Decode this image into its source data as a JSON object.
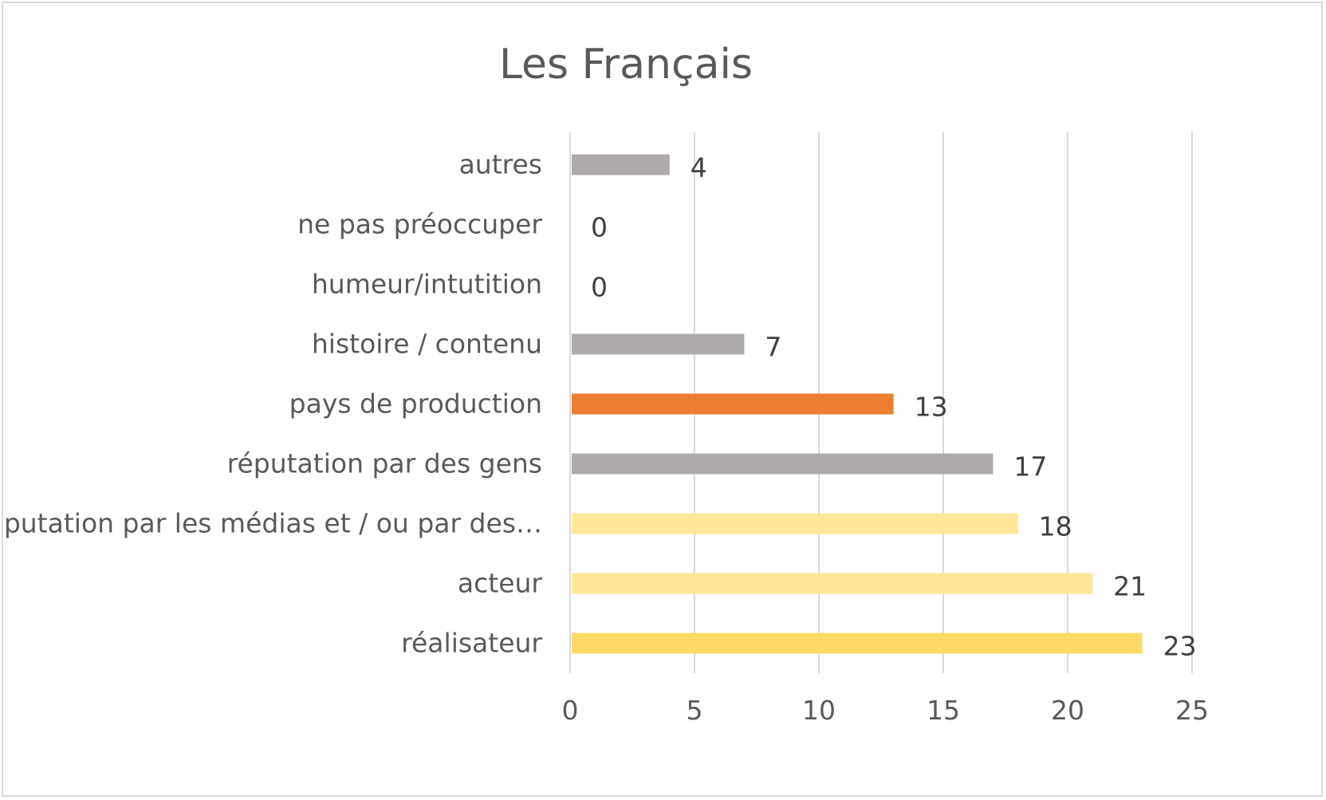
{
  "chart_data": {
    "type": "bar",
    "orientation": "horizontal",
    "title": "Les Français",
    "xlabel": "",
    "ylabel": "",
    "categories": [
      "autres",
      "ne pas préoccuper",
      "humeur/intutition",
      "histoire / contenu",
      "pays de production",
      "réputation par des gens",
      "réputation par les médias et / ou par des…",
      "acteur",
      "réalisateur"
    ],
    "values": [
      4,
      0,
      0,
      7,
      13,
      17,
      18,
      21,
      23
    ],
    "bar_colors": [
      "#aeaaaa",
      "#aeaaaa",
      "#aeaaaa",
      "#aeaaaa",
      "#ed7d31",
      "#aeaaaa",
      "#ffe699",
      "#ffe699",
      "#ffd966"
    ],
    "xlim": [
      0,
      25
    ],
    "xticks": [
      "0",
      "5",
      "10",
      "15",
      "20",
      "25"
    ],
    "grid": "vertical",
    "legend": "none",
    "data_labels": true
  }
}
